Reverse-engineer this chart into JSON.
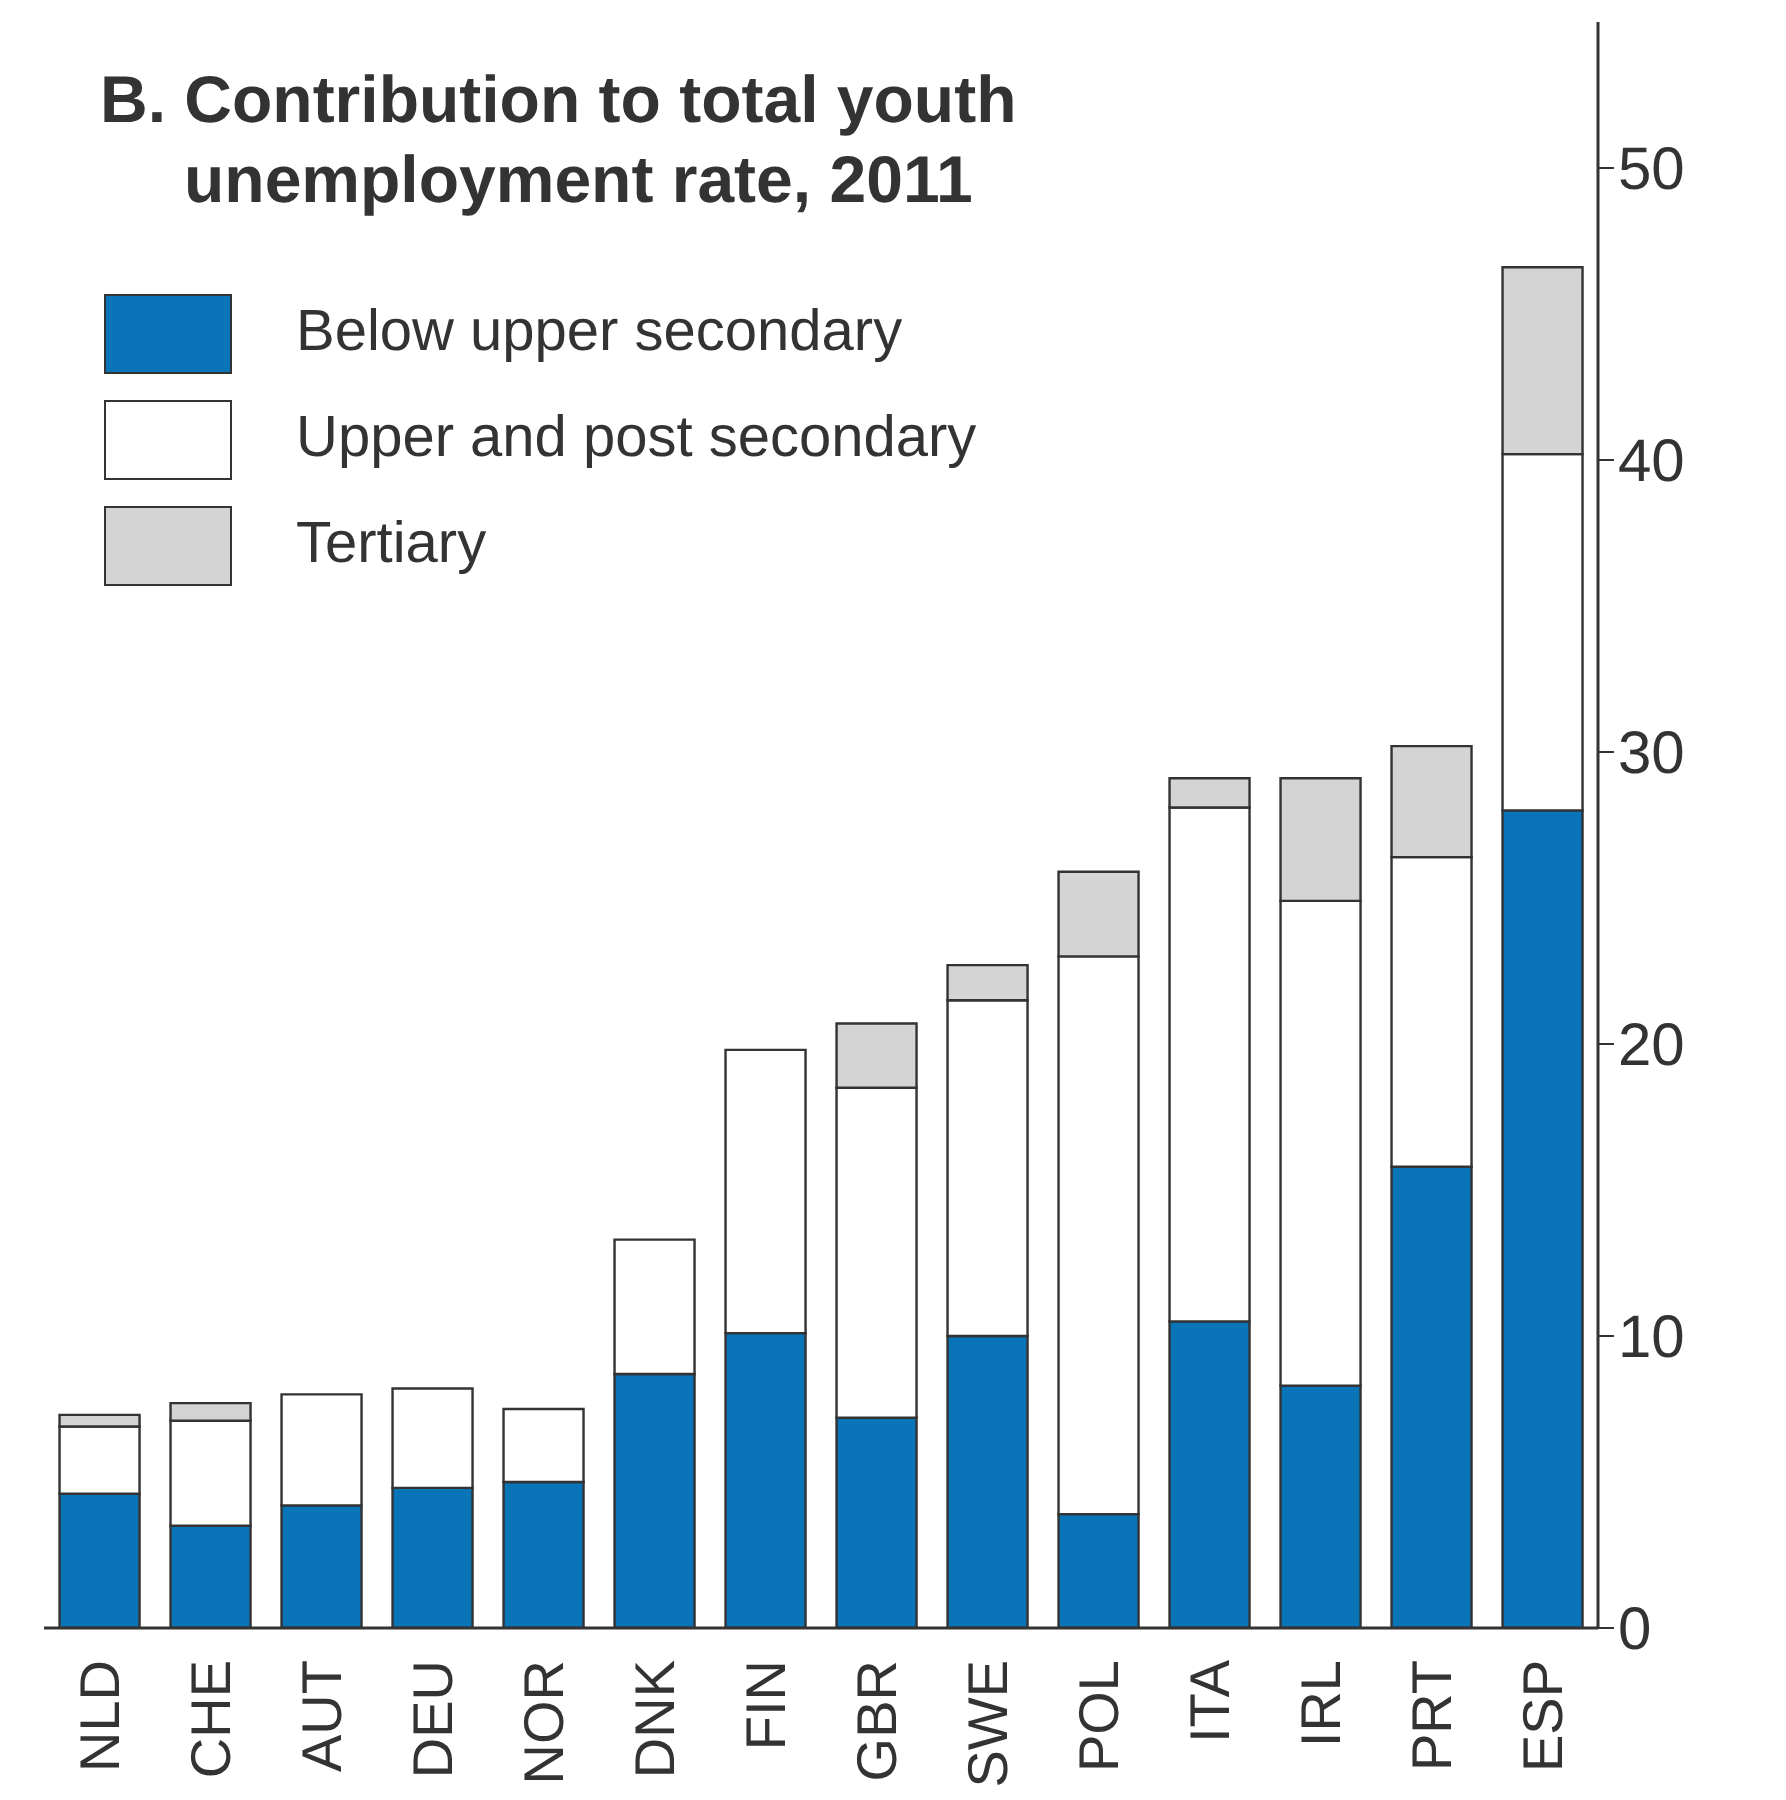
{
  "chart_data": {
    "type": "bar",
    "title": "B. Contribution to total youth\nunemployment rate, 2011",
    "categories": [
      "NLD",
      "CHE",
      "AUT",
      "DEU",
      "NOR",
      "DNK",
      "FIN",
      "GBR",
      "SWE",
      "POL",
      "ITA",
      "IRL",
      "PRT",
      "ESP"
    ],
    "series": [
      {
        "name": "Below upper secondary",
        "color": "#0a74b9",
        "values": [
          4.6,
          3.5,
          4.2,
          4.8,
          5.0,
          8.7,
          10.1,
          7.2,
          10.0,
          3.9,
          10.5,
          8.3,
          15.8,
          28.0
        ]
      },
      {
        "name": "Upper and post secondary",
        "color": "#ffffff",
        "values": [
          2.3,
          3.6,
          3.8,
          3.4,
          2.5,
          4.6,
          9.7,
          11.3,
          11.5,
          19.1,
          17.6,
          16.6,
          10.6,
          12.2
        ]
      },
      {
        "name": "Tertiary",
        "color": "#d4d4d4",
        "values": [
          0.4,
          0.6,
          0,
          0,
          0,
          0,
          0,
          2.2,
          1.2,
          2.9,
          1.0,
          4.2,
          3.8,
          6.4
        ]
      }
    ],
    "stacked": true,
    "ylim": [
      0,
      55
    ],
    "yticks": [
      0,
      10,
      20,
      30,
      40,
      50
    ],
    "grid": false,
    "legend": "top left"
  }
}
